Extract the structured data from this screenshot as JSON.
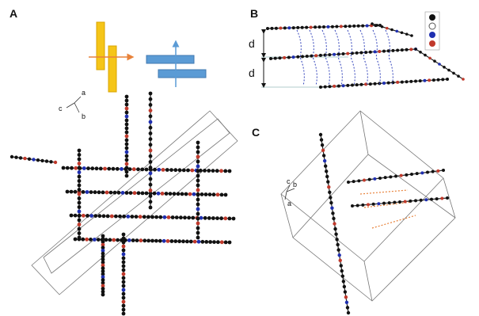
{
  "panels": [
    {
      "label": "A",
      "axes": [
        "a",
        "c",
        "b"
      ]
    },
    {
      "label": "B",
      "spacings": [
        "d",
        "d"
      ]
    },
    {
      "label": "C",
      "axes": [
        "c",
        "b",
        "a"
      ]
    }
  ]
}
